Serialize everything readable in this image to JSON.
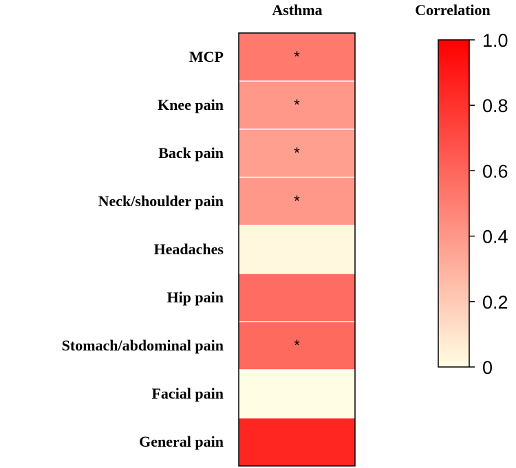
{
  "chart_data": {
    "type": "heatmap",
    "column_title": "Asthma",
    "legend_title": "Correlation",
    "rows": [
      {
        "label": "MCP",
        "value": 0.52,
        "significant": true
      },
      {
        "label": "Knee pain",
        "value": 0.4,
        "significant": true
      },
      {
        "label": "Back pain",
        "value": 0.37,
        "significant": true
      },
      {
        "label": "Neck/shoulder pain",
        "value": 0.4,
        "significant": true
      },
      {
        "label": "Headaches",
        "value": 0.02,
        "significant": false
      },
      {
        "label": "Hip pain",
        "value": 0.57,
        "significant": false
      },
      {
        "label": "Stomach/abdominal pain",
        "value": 0.58,
        "significant": true
      },
      {
        "label": "Facial pain",
        "value": 0.0,
        "significant": false
      },
      {
        "label": "General pain",
        "value": 0.85,
        "significant": false
      }
    ],
    "significance_marker": "*",
    "color_scale": {
      "range": [
        0,
        1.0
      ],
      "low_color": "#fffde3",
      "high_color": "#ff0000"
    },
    "colorbar_ticks": [
      "0",
      "0.2",
      "0.4",
      "0.6",
      "0.8",
      "1.0"
    ],
    "colorbar_tick_values": [
      0,
      0.2,
      0.4,
      0.6,
      0.8,
      1.0
    ]
  }
}
